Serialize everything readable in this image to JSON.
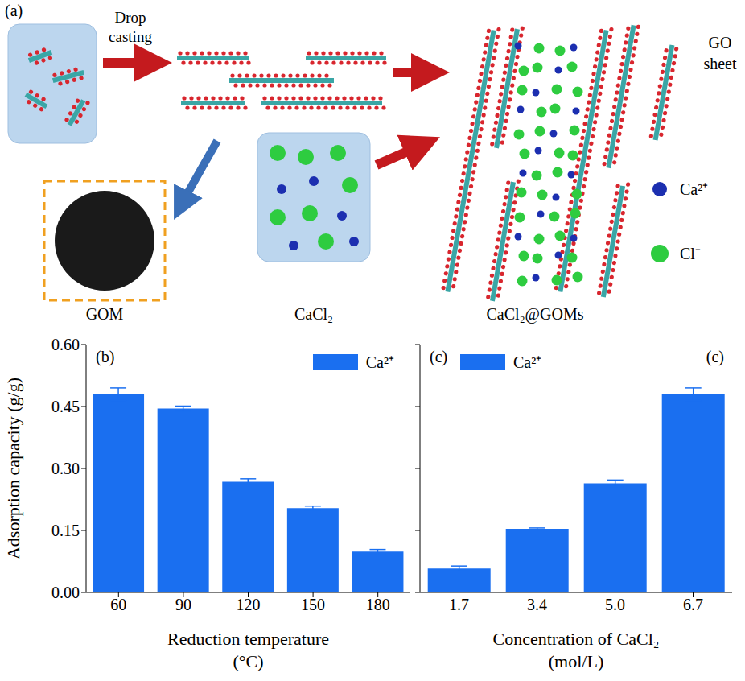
{
  "diagram": {
    "panel_label": "(a)",
    "arrow_label": "Drop casting",
    "labels": {
      "gom": "GOM",
      "salt": "CaCl₂",
      "composite": "CaCl₂@GOMs"
    },
    "legend": [
      {
        "label": "GO sheet"
      },
      {
        "label": "Ca²⁺",
        "color": "#1c2fb0"
      },
      {
        "label": "Cl⁻",
        "color": "#2ecc40"
      }
    ]
  },
  "chart_data": [
    {
      "type": "bar",
      "panel_label": "(b)",
      "xlabel": "Reduction temperature (°C)",
      "ylabel": "Adsorption capacity (g/g)",
      "categories": [
        "60",
        "90",
        "120",
        "150",
        "180"
      ],
      "series": [
        {
          "name": "Ca²⁺",
          "color": "#1a6ff0",
          "values": [
            0.48,
            0.445,
            0.268,
            0.204,
            0.099
          ],
          "errors": [
            0.015,
            0.006,
            0.007,
            0.005,
            0.005
          ]
        }
      ],
      "ylim": [
        0,
        0.6
      ],
      "yticks": [
        {
          "value": 0,
          "label": "0.00"
        },
        {
          "value": 0.15,
          "label": "0.15"
        },
        {
          "value": 0.3,
          "label": "0.30"
        },
        {
          "value": 0.45,
          "label": "0.45"
        },
        {
          "value": 0.6,
          "label": "0.60"
        }
      ],
      "legend": "upper right"
    },
    {
      "type": "bar",
      "panel_label": "(c)",
      "xlabel": "Concentration of CaCl₂ (mol/L)",
      "categories": [
        "1.7",
        "3.4",
        "5.0",
        "6.7"
      ],
      "series": [
        {
          "name": "Ca²⁺",
          "color": "#1a6ff0",
          "values": [
            0.058,
            0.154,
            0.264,
            0.48
          ],
          "errors": [
            0.006,
            0.002,
            0.008,
            0.015
          ]
        }
      ],
      "ylim": [
        0,
        0.6
      ],
      "yticks": [
        {
          "value": 0,
          "label": "0.00"
        },
        {
          "value": 0.15,
          "label": "0.15"
        },
        {
          "value": 0.3,
          "label": "0.30"
        },
        {
          "value": 0.45,
          "label": "0.45"
        },
        {
          "value": 0.6,
          "label": "0.60"
        }
      ],
      "legend": "upper left",
      "tick_labels": "x"
    }
  ]
}
